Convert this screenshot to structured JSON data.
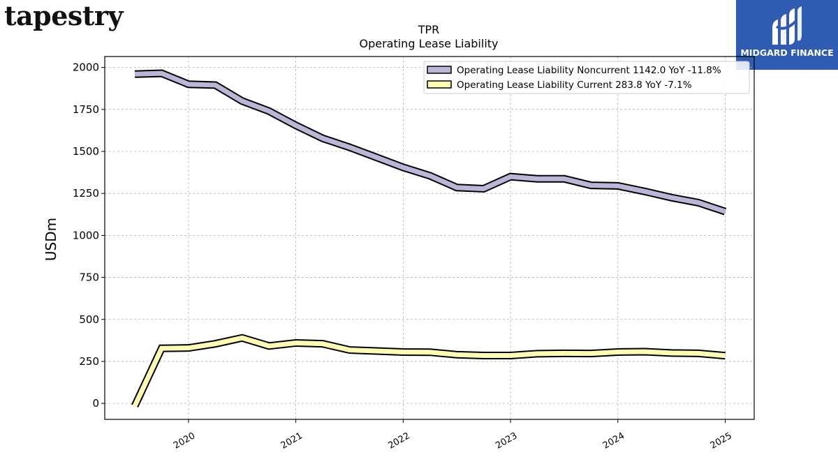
{
  "brand": {
    "name": "tapestry"
  },
  "logo": {
    "text": "MIDGARD FINANCE",
    "color": "#2f5bb0"
  },
  "chart_data": {
    "type": "line",
    "title": "TPR",
    "subtitle": "Operating Lease Liability",
    "ylabel": "USDm",
    "xlabel": "",
    "ylim": [
      -95,
      2065
    ],
    "xlim": [
      2019.22,
      2025.27
    ],
    "yticks": [
      0,
      250,
      500,
      750,
      1000,
      1250,
      1500,
      1750,
      2000
    ],
    "xticks": [
      2020,
      2021,
      2022,
      2023,
      2024,
      2025
    ],
    "xtick_labels": [
      "2020",
      "2021",
      "2022",
      "2023",
      "2024",
      "2025"
    ],
    "grid": true,
    "legend": "top-right",
    "series": [
      {
        "name": "Operating Lease Liability Noncurrent  1142.0 YoY -11.8%",
        "color": "#bbb5d8",
        "x": [
          2019.5,
          2019.75,
          2020.0,
          2020.25,
          2020.5,
          2020.75,
          2021.0,
          2021.25,
          2021.5,
          2021.75,
          2022.0,
          2022.25,
          2022.5,
          2022.75,
          2023.0,
          2023.25,
          2023.5,
          2023.75,
          2024.0,
          2024.25,
          2024.5,
          2024.75,
          2025.0
        ],
        "y": [
          1960,
          1965,
          1900,
          1895,
          1800,
          1740,
          1655,
          1578,
          1525,
          1465,
          1405,
          1355,
          1285,
          1278,
          1350,
          1337,
          1337,
          1298,
          1295,
          1262,
          1225,
          1195,
          1142
        ]
      },
      {
        "name": "Operating Lease Liability Current  283.8 YoY -7.1%",
        "color": "#fffcb3",
        "x": [
          2019.5,
          2019.75,
          2020.0,
          2020.25,
          2020.5,
          2020.75,
          2021.0,
          2021.25,
          2021.5,
          2021.75,
          2022.0,
          2022.25,
          2022.5,
          2022.75,
          2023.0,
          2023.25,
          2023.5,
          2023.75,
          2024.0,
          2024.25,
          2024.5,
          2024.75,
          2025.0
        ],
        "y": [
          -15,
          328,
          330,
          355,
          390,
          342,
          360,
          355,
          318,
          312,
          306,
          305,
          290,
          285,
          285,
          296,
          298,
          297,
          306,
          308,
          300,
          298,
          284
        ]
      }
    ]
  }
}
